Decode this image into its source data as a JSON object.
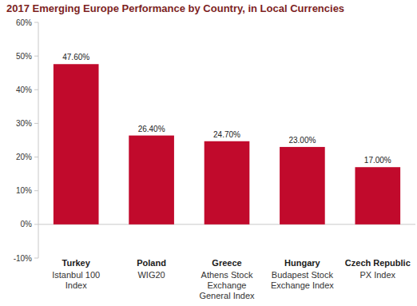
{
  "chart_data": {
    "type": "bar",
    "title": "2017 Emerging Europe Performance by Country, in Local Currencies",
    "categories": [
      "Turkey",
      "Poland",
      "Greece",
      "Hungary",
      "Czech Republic"
    ],
    "category_subtitles": [
      "Istanbul 100 Index",
      "WIG20",
      "Athens Stock Exchange General Index",
      "Budapest Stock Exchange Index",
      "PX Index"
    ],
    "values": [
      47.6,
      26.4,
      24.7,
      23,
      17
    ],
    "value_labels": [
      "47.60%",
      "26.40%",
      "24.70%",
      "23.00%",
      "17.00%"
    ],
    "color": "#c10a2c",
    "ylim": [
      -10,
      60
    ],
    "yticks": [
      {
        "value": -10,
        "label": "-10%"
      },
      {
        "value": 0,
        "label": "0%"
      },
      {
        "value": 10,
        "label": "10%"
      },
      {
        "value": 20,
        "label": "20%"
      },
      {
        "value": 30,
        "label": "30%"
      },
      {
        "value": 40,
        "label": "40%"
      },
      {
        "value": 50,
        "label": "50%"
      },
      {
        "value": 60,
        "label": "60%"
      }
    ],
    "grid": false,
    "data_labels": true
  }
}
